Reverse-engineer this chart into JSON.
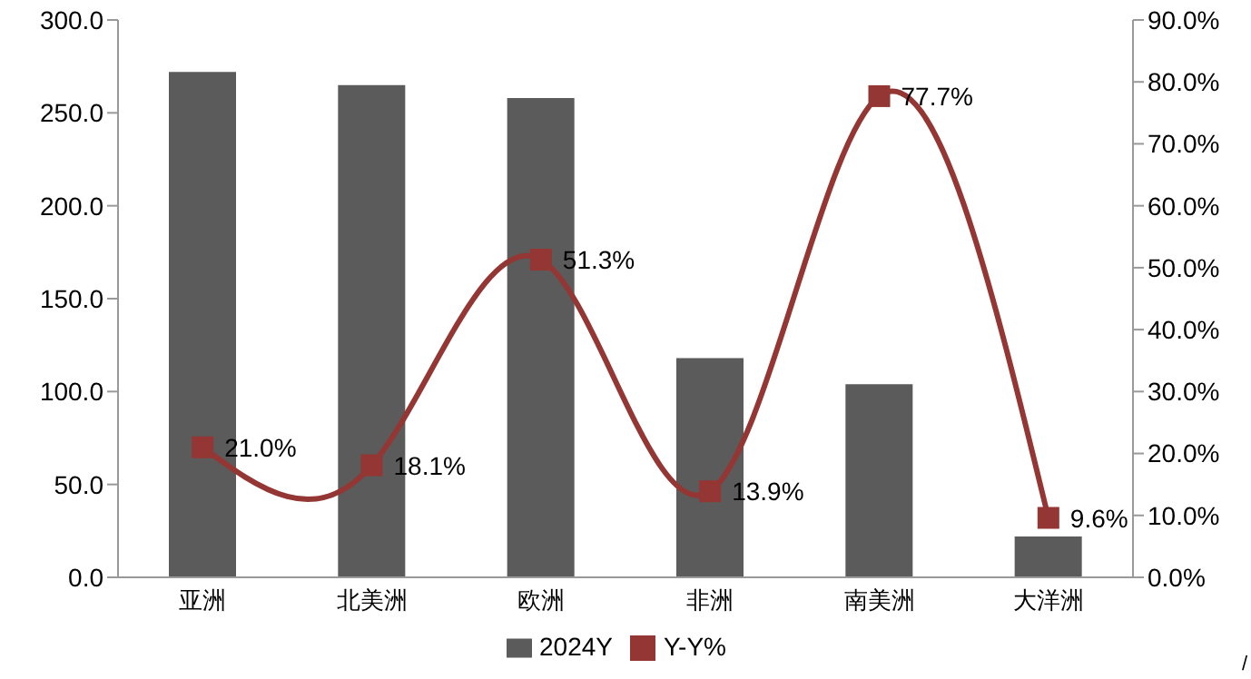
{
  "chart_data": {
    "type": "bar",
    "categories": [
      "亚洲",
      "北美洲",
      "欧洲",
      "非洲",
      "南美洲",
      "大洋洲"
    ],
    "series": [
      {
        "name": "2024Y",
        "color": "#5b5b5b",
        "values": [
          272,
          265,
          258,
          118,
          104,
          22
        ]
      },
      {
        "name": "Y-Y%",
        "type": "line",
        "axis": "y2",
        "color": "#943634",
        "values": [
          21.0,
          18.1,
          51.3,
          13.9,
          77.7,
          9.6
        ],
        "value_labels": [
          "21.0%",
          "18.1%",
          "51.3%",
          "13.9%",
          "77.7%",
          "9.6%"
        ],
        "marker": "square"
      }
    ],
    "ylim": [
      0,
      300
    ],
    "yticks": [
      {
        "value": 0,
        "label": "0.0"
      },
      {
        "value": 50,
        "label": "50.0"
      },
      {
        "value": 100,
        "label": "100.0"
      },
      {
        "value": 150,
        "label": "150.0"
      },
      {
        "value": 200,
        "label": "200.0"
      },
      {
        "value": 250,
        "label": "250.0"
      },
      {
        "value": 300,
        "label": "300.0"
      }
    ],
    "y2lim": [
      0,
      90
    ],
    "y2ticks": [
      {
        "value": 0,
        "label": "0.0%"
      },
      {
        "value": 10,
        "label": "10.0%"
      },
      {
        "value": 20,
        "label": "20.0%"
      },
      {
        "value": 30,
        "label": "30.0%"
      },
      {
        "value": 40,
        "label": "40.0%"
      },
      {
        "value": 50,
        "label": "50.0%"
      },
      {
        "value": 60,
        "label": "60.0%"
      },
      {
        "value": 70,
        "label": "70.0%"
      },
      {
        "value": 80,
        "label": "80.0%"
      },
      {
        "value": 90,
        "label": "90.0%"
      }
    ],
    "legend": "bottom",
    "annotations": [
      "/"
    ]
  }
}
